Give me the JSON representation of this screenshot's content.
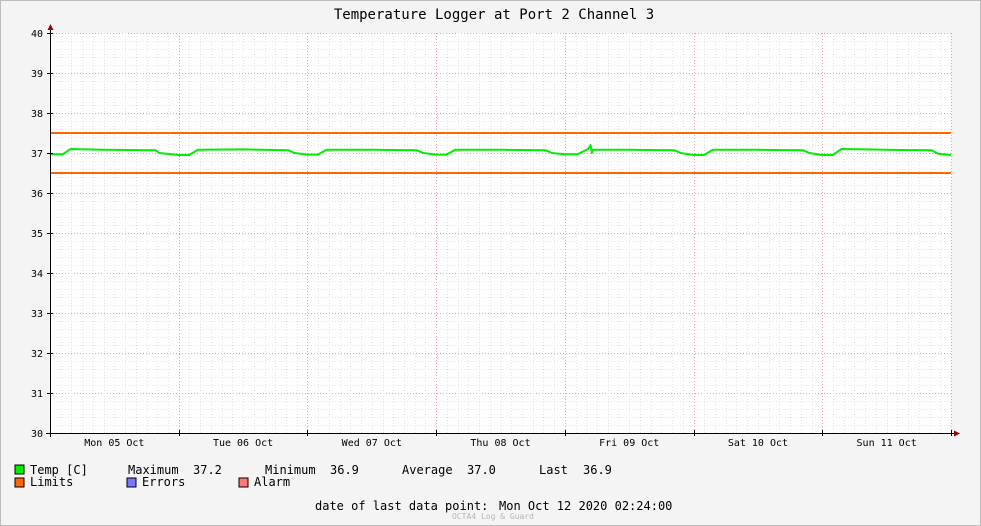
{
  "chart_data": {
    "type": "line",
    "title": "Temperature Logger at Port 2 Channel 3",
    "ylim": [
      30,
      40
    ],
    "y_ticks": [
      "30",
      "31",
      "32",
      "33",
      "34",
      "35",
      "36",
      "37",
      "38",
      "39",
      "40"
    ],
    "x_range_days": [
      0,
      7
    ],
    "x_day_labels": [
      "Mon 05 Oct",
      "Tue 06 Oct",
      "Wed 07 Oct",
      "Thu 08 Oct",
      "Fri 09 Oct",
      "Sat 10 Oct",
      "Sun 11 Oct"
    ],
    "limits": {
      "upper": 37.5,
      "lower": 36.5
    },
    "series": [
      {
        "name": "Temp [C]",
        "color": "#00ee00",
        "x_days": [
          0,
          0.1,
          0.16,
          0.4,
          0.82,
          0.85,
          1.0,
          1.08,
          1.15,
          1.5,
          1.85,
          1.9,
          2.0,
          2.08,
          2.15,
          2.5,
          2.85,
          2.9,
          3.0,
          3.08,
          3.15,
          3.5,
          3.85,
          3.9,
          4.0,
          4.1,
          4.18,
          4.2,
          4.21,
          4.22,
          4.5,
          4.85,
          4.9,
          5.0,
          5.08,
          5.15,
          5.5,
          5.85,
          5.9,
          6.0,
          6.08,
          6.15,
          6.5,
          6.85,
          6.9,
          7.0
        ],
        "y": [
          36.97,
          36.97,
          37.1,
          37.08,
          37.07,
          37.0,
          36.95,
          36.95,
          37.08,
          37.09,
          37.07,
          37.0,
          36.96,
          36.96,
          37.08,
          37.08,
          37.07,
          37.0,
          36.96,
          36.96,
          37.08,
          37.08,
          37.07,
          37.0,
          36.97,
          36.97,
          37.1,
          37.2,
          37.0,
          37.08,
          37.08,
          37.07,
          37.0,
          36.95,
          36.95,
          37.08,
          37.08,
          37.07,
          37.0,
          36.95,
          36.95,
          37.1,
          37.08,
          37.07,
          36.98,
          36.95
        ]
      }
    ],
    "grid": true
  },
  "legend": {
    "temp_label": "Temp [C]",
    "maximum_label": "Maximum",
    "maximum_value": "37.2",
    "minimum_label": "Minimum",
    "minimum_value": "36.9",
    "average_label": "Average",
    "average_value": "37.0",
    "last_label": "Last",
    "last_value": "36.9",
    "limits_label": "Limits",
    "errors_label": "Errors",
    "alarm_label": "Alarm",
    "colors": {
      "temp": "#00ee00",
      "limits": "#ff6600",
      "errors": "#7777ff",
      "alarm": "#ff7777"
    }
  },
  "footer": {
    "last_point_label": "date of last data point:",
    "last_point_value": "Mon Oct 12 2020 02:24:00",
    "credit": "OCTA4 Log & Guard"
  }
}
